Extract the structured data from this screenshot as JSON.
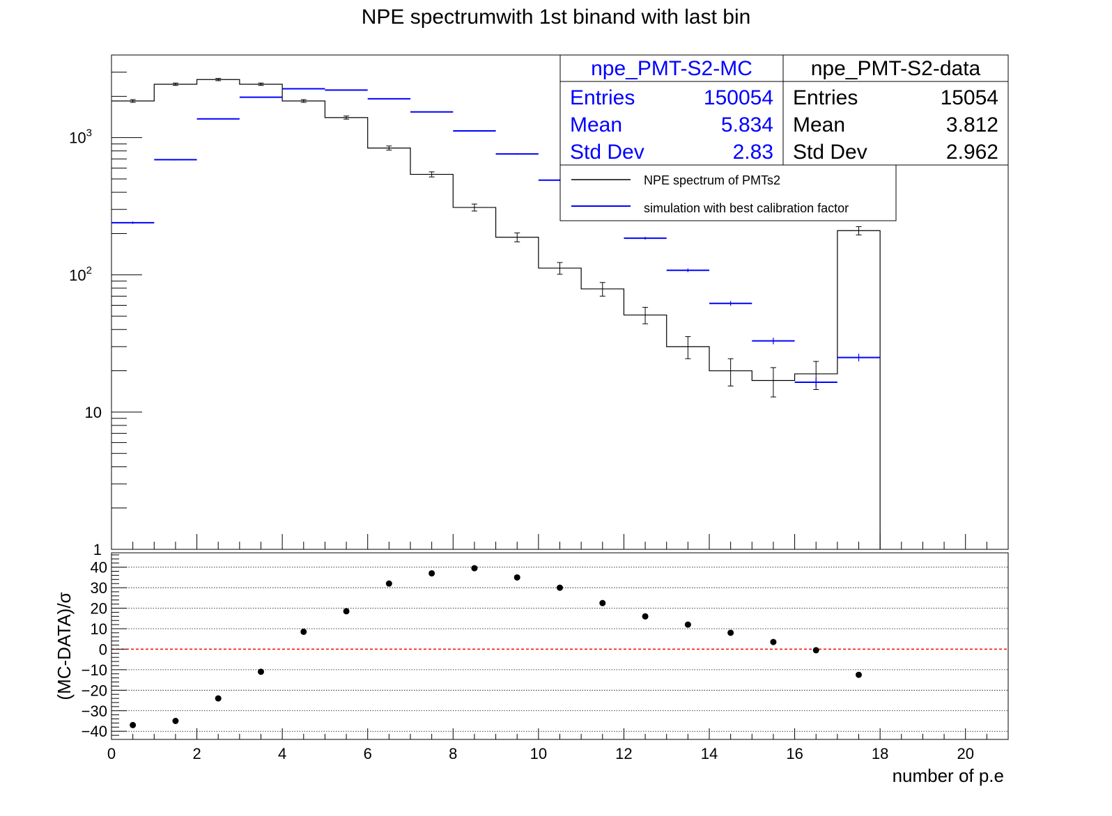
{
  "title": "NPE spectrumwith 1st binand with last bin",
  "colors": {
    "data": "#000000",
    "mc": "#0000ff",
    "zero_line": "#ff0000",
    "grid": "#000000"
  },
  "chart_data": [
    {
      "type": "histogram",
      "scale": "log",
      "xlim": [
        0,
        21
      ],
      "ylim": [
        1,
        4000
      ],
      "y_tick_labels": [
        "1",
        "10",
        "10^2",
        "10^3"
      ],
      "bin_edges": [
        0,
        1,
        2,
        3,
        4,
        5,
        6,
        7,
        8,
        9,
        10,
        11,
        12,
        13,
        14,
        15,
        16,
        17,
        18
      ],
      "series": [
        {
          "name": "NPE spectrum of PMTs2",
          "values": [
            1850,
            2450,
            2650,
            2450,
            1850,
            1400,
            840,
            540,
            310,
            188,
            112,
            79,
            51,
            30,
            20,
            17,
            19,
            210
          ],
          "errors": [
            43,
            49,
            51,
            49,
            43,
            37,
            29,
            23,
            18,
            14,
            11,
            9,
            7,
            5.5,
            4.5,
            4.1,
            4.4,
            14.5
          ]
        },
        {
          "name": "simulation with best calibration factor",
          "values": [
            240,
            690,
            1370,
            1970,
            2270,
            2220,
            1920,
            1540,
            1120,
            760,
            490,
            300,
            185,
            108,
            62,
            33,
            16.5,
            25
          ],
          "errors": [
            5,
            8,
            12,
            14,
            15,
            15,
            14,
            12,
            11,
            9,
            7,
            5.5,
            4.3,
            3.3,
            2.5,
            1.8,
            1.3,
            1.6
          ]
        }
      ],
      "stats": [
        {
          "name": "npe_PMT-S2-MC",
          "rows": [
            {
              "label": "Entries",
              "value": "150054"
            },
            {
              "label": "Mean",
              "value": "5.834"
            },
            {
              "label": "Std Dev",
              "value": "2.83"
            }
          ]
        },
        {
          "name": "npe_PMT-S2-data",
          "rows": [
            {
              "label": "Entries",
              "value": "15054"
            },
            {
              "label": "Mean",
              "value": "3.812"
            },
            {
              "label": "Std Dev",
              "value": "2.962"
            }
          ]
        }
      ]
    },
    {
      "type": "scatter",
      "xlabel": "number of p.e",
      "ylabel": "(MC-DATA)/σ",
      "xlim": [
        0,
        21
      ],
      "ylim": [
        -44,
        47
      ],
      "x_ticks": [
        0,
        2,
        4,
        6,
        8,
        10,
        12,
        14,
        16,
        18,
        20
      ],
      "y_ticks": [
        -40,
        -30,
        -20,
        -10,
        0,
        10,
        20,
        30,
        40
      ],
      "y_tick_labels": [
        "−40",
        "−30",
        "−20",
        "−10",
        "0",
        "10",
        "20",
        "30",
        "40"
      ],
      "grid": true,
      "reference_line": 0,
      "x": [
        0.5,
        1.5,
        2.5,
        3.5,
        4.5,
        5.5,
        6.5,
        7.5,
        8.5,
        9.5,
        10.5,
        11.5,
        12.5,
        13.5,
        14.5,
        15.5,
        16.5,
        17.5
      ],
      "y": [
        -37,
        -35,
        -24,
        -11,
        8.5,
        18.5,
        32,
        37,
        39.5,
        35,
        30,
        22.5,
        16,
        12,
        8,
        3.5,
        -0.5,
        -12.5
      ]
    }
  ]
}
